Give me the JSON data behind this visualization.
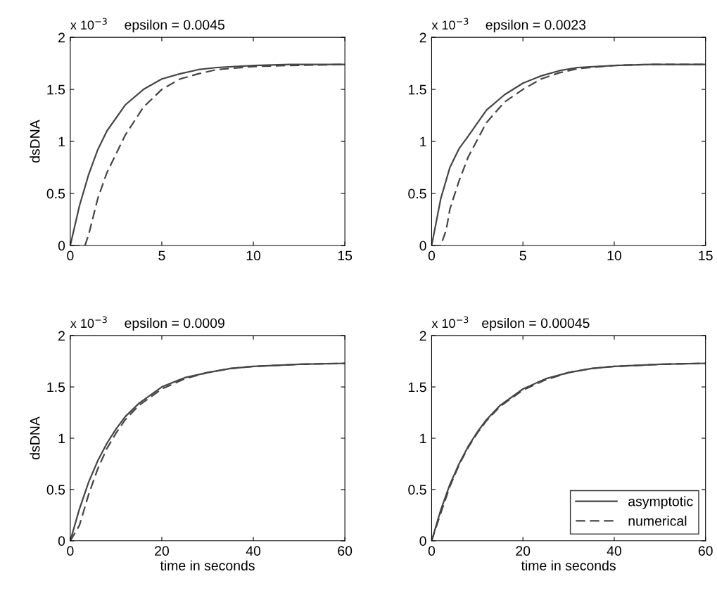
{
  "chart_data": [
    {
      "type": "line",
      "title": "epsilon = 0.0045",
      "ylabel": "dsDNA",
      "annotations": [
        "x 10$^{−3}$"
      ],
      "xlim": [
        0,
        15
      ],
      "xticks": [
        0,
        5,
        10,
        15
      ],
      "ylim": [
        0,
        2
      ],
      "yticks": [
        0,
        0.5,
        1,
        1.5,
        2
      ],
      "grid": false,
      "series": [
        {
          "color": "#454545",
          "line_style": "solid",
          "x": [
            0,
            0.5,
            1,
            1.5,
            2,
            3,
            4,
            5,
            6,
            7,
            8,
            10,
            12,
            15
          ],
          "values": [
            0,
            0.38,
            0.68,
            0.92,
            1.1,
            1.35,
            1.5,
            1.6,
            1.65,
            1.69,
            1.71,
            1.73,
            1.74,
            1.74
          ]
        },
        {
          "color": "#454545",
          "line_style": "dashed",
          "x": [
            0,
            0.8,
            1,
            1.5,
            2,
            3,
            4,
            5,
            6,
            7,
            8,
            10,
            12,
            15
          ],
          "values": [
            0,
            0,
            0.1,
            0.45,
            0.7,
            1.06,
            1.33,
            1.5,
            1.6,
            1.65,
            1.69,
            1.72,
            1.73,
            1.74
          ]
        }
      ]
    },
    {
      "type": "line",
      "title": "epsilon = 0.0023",
      "annotations": [
        "x 10$^{−3}$"
      ],
      "xlim": [
        0,
        15
      ],
      "xticks": [
        0,
        5,
        10,
        15
      ],
      "ylim": [
        0,
        2
      ],
      "yticks": [
        0,
        0.5,
        1,
        1.5,
        2
      ],
      "grid": false,
      "series": [
        {
          "color": "#454545",
          "line_style": "solid",
          "x": [
            0,
            0.5,
            1,
            1.5,
            2,
            3,
            4,
            5,
            6,
            7,
            8,
            10,
            12,
            15
          ],
          "values": [
            0,
            0.45,
            0.75,
            0.93,
            1.05,
            1.3,
            1.45,
            1.56,
            1.63,
            1.68,
            1.71,
            1.73,
            1.74,
            1.74
          ]
        },
        {
          "color": "#454545",
          "line_style": "dashed",
          "x": [
            0,
            0.5,
            0.8,
            1,
            1.5,
            2,
            3,
            4,
            5,
            6,
            7,
            8,
            10,
            12,
            15
          ],
          "values": [
            0,
            0,
            0.15,
            0.35,
            0.62,
            0.85,
            1.18,
            1.38,
            1.5,
            1.6,
            1.66,
            1.7,
            1.73,
            1.74,
            1.74
          ]
        }
      ]
    },
    {
      "type": "line",
      "title": "epsilon = 0.0009",
      "xlabel": "time in seconds",
      "ylabel": "dsDNA",
      "annotations": [
        "x 10$^{−3}$"
      ],
      "xlim": [
        0,
        60
      ],
      "xticks": [
        0,
        20,
        40,
        60
      ],
      "ylim": [
        0,
        2
      ],
      "yticks": [
        0,
        0.5,
        1,
        1.5,
        2
      ],
      "grid": false,
      "series": [
        {
          "color": "#454545",
          "line_style": "solid",
          "x": [
            0,
            2,
            4,
            6,
            8,
            10,
            12,
            15,
            20,
            25,
            30,
            35,
            40,
            50,
            60
          ],
          "values": [
            0,
            0.31,
            0.57,
            0.78,
            0.95,
            1.09,
            1.21,
            1.34,
            1.5,
            1.59,
            1.64,
            1.68,
            1.7,
            1.72,
            1.73
          ]
        },
        {
          "color": "#454545",
          "line_style": "dashed",
          "x": [
            0,
            2,
            4,
            6,
            8,
            10,
            12,
            15,
            20,
            25,
            30,
            35,
            40,
            50,
            60
          ],
          "values": [
            0,
            0.15,
            0.45,
            0.7,
            0.9,
            1.05,
            1.18,
            1.32,
            1.48,
            1.58,
            1.64,
            1.68,
            1.7,
            1.72,
            1.73
          ]
        }
      ]
    },
    {
      "type": "line",
      "title": "epsilon = 0.00045",
      "xlabel": "time in seconds",
      "annotations": [
        "x 10$^{−3}$"
      ],
      "xlim": [
        0,
        60
      ],
      "xticks": [
        0,
        20,
        40,
        60
      ],
      "ylim": [
        0,
        2
      ],
      "yticks": [
        0,
        0.5,
        1,
        1.5,
        2
      ],
      "grid": false,
      "legend": "bottom right",
      "series": [
        {
          "name": "asymptotic",
          "color": "#454545",
          "line_style": "solid",
          "x": [
            0,
            2,
            4,
            6,
            8,
            10,
            12,
            15,
            20,
            25,
            30,
            35,
            40,
            50,
            60
          ],
          "values": [
            0,
            0.3,
            0.55,
            0.75,
            0.92,
            1.06,
            1.18,
            1.32,
            1.48,
            1.58,
            1.64,
            1.68,
            1.7,
            1.72,
            1.73
          ]
        },
        {
          "name": "numerical",
          "color": "#454545",
          "line_style": "dashed",
          "x": [
            0,
            2,
            4,
            6,
            8,
            10,
            12,
            15,
            20,
            25,
            30,
            35,
            40,
            50,
            60
          ],
          "values": [
            0,
            0.27,
            0.53,
            0.74,
            0.91,
            1.05,
            1.17,
            1.31,
            1.47,
            1.57,
            1.64,
            1.68,
            1.7,
            1.72,
            1.73
          ]
        }
      ]
    }
  ]
}
